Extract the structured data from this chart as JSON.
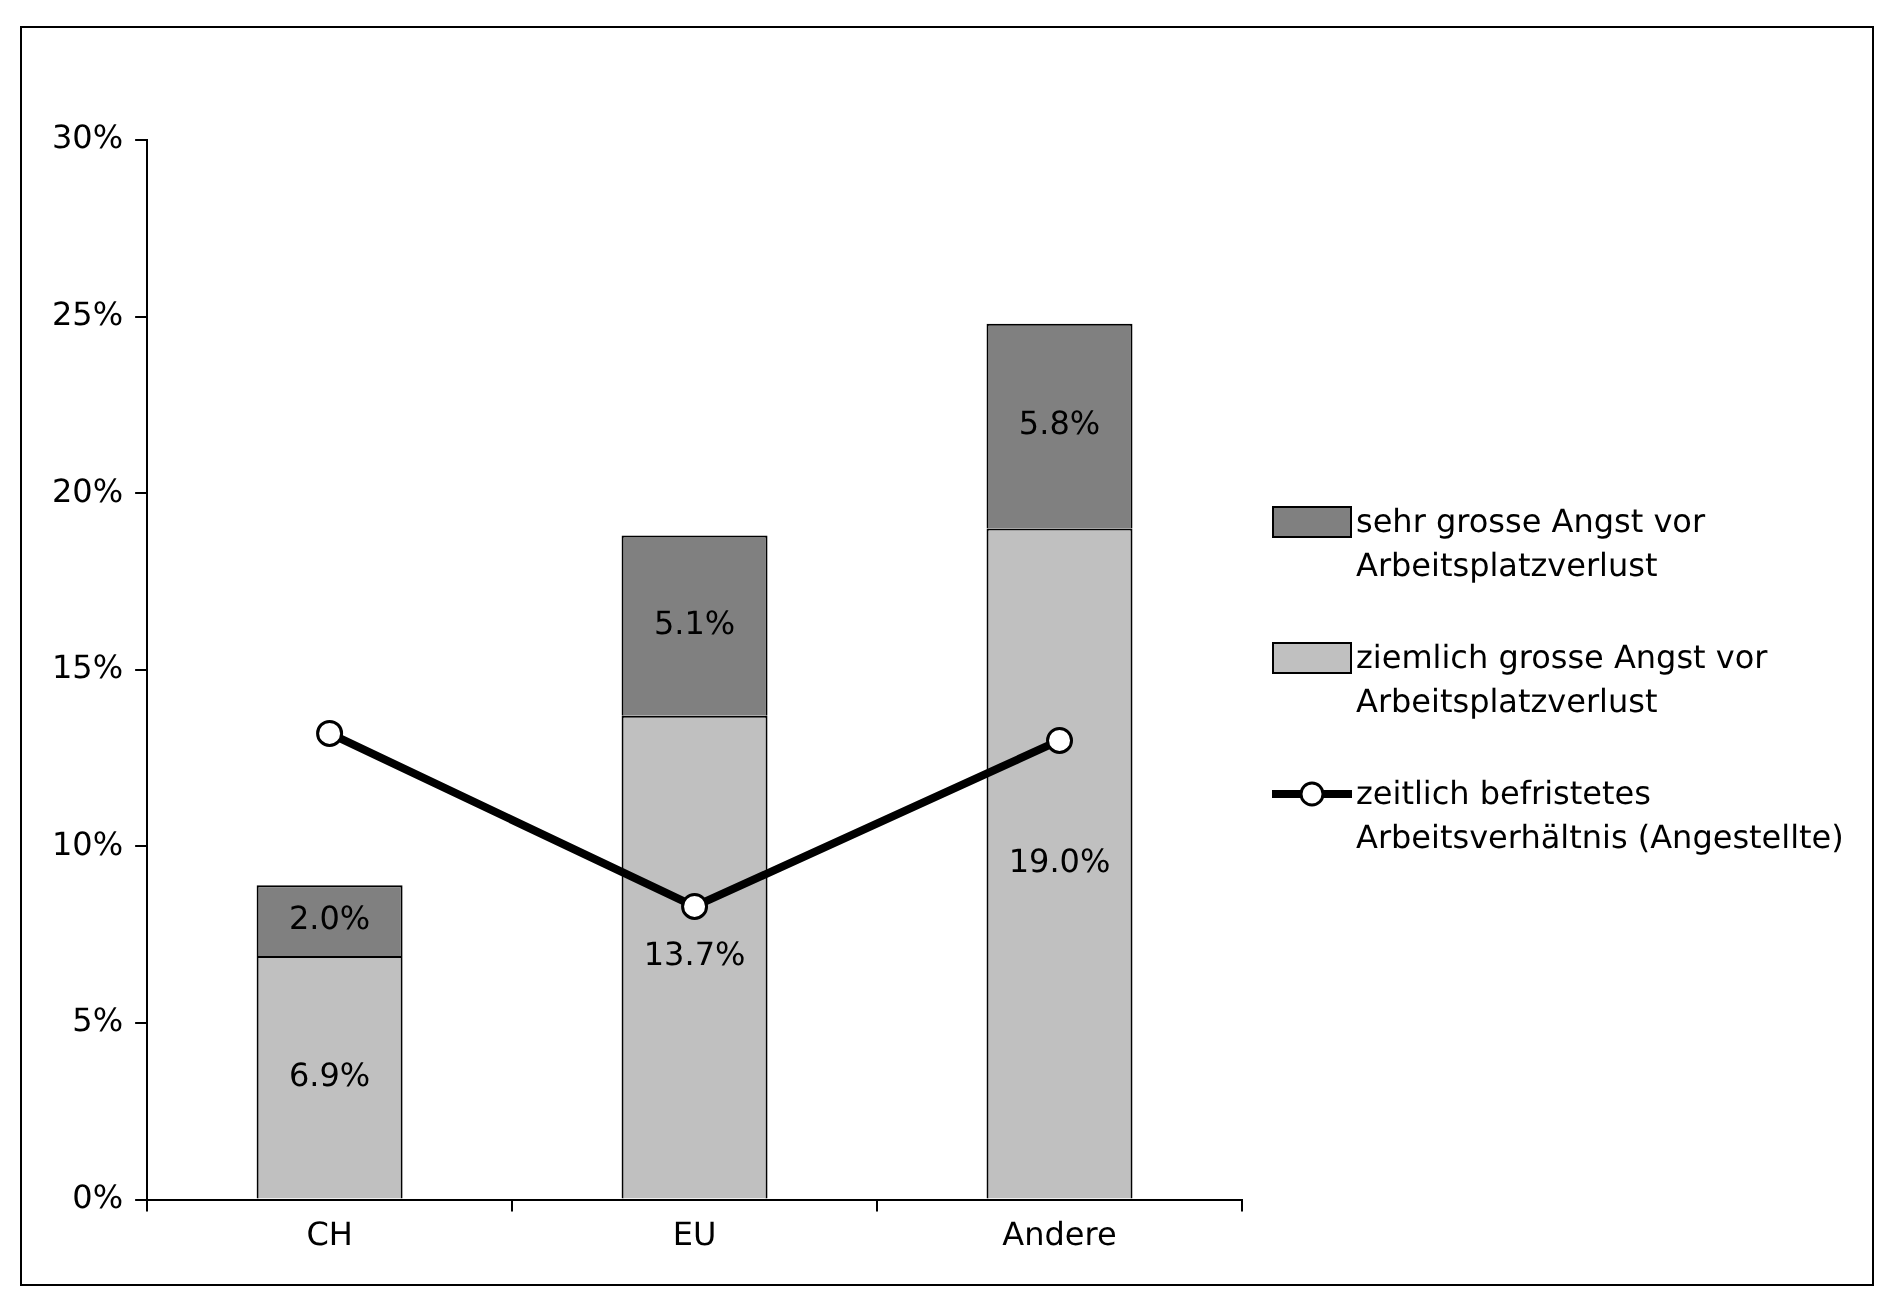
{
  "chart_data": {
    "type": "bar",
    "stacked": true,
    "categories": [
      "CH",
      "EU",
      "Andere"
    ],
    "series": [
      {
        "name": "ziemlich grosse Angst vor Arbeitsplatzverlust",
        "color": "#c0c0c0",
        "values": [
          6.9,
          13.7,
          19.0
        ],
        "value_labels": [
          "6.9%",
          "13.7%",
          "19.0%"
        ]
      },
      {
        "name": "sehr grosse Angst vor Arbeitsplatzverlust",
        "color": "#808080",
        "values": [
          2.0,
          5.1,
          5.8
        ],
        "value_labels": [
          "2.0%",
          "5.1%",
          "5.8%"
        ]
      },
      {
        "name": "zeitlich befristetes Arbeitsverhältnis (Angestellte)",
        "type": "line",
        "color": "#000000",
        "values": [
          13.2,
          8.3,
          13.0
        ],
        "marker": "circle"
      }
    ],
    "ylim": [
      0,
      30
    ],
    "yticks": [
      {
        "value": 0,
        "label": "0%"
      },
      {
        "value": 5,
        "label": "5%"
      },
      {
        "value": 10,
        "label": "10%"
      },
      {
        "value": 15,
        "label": "15%"
      },
      {
        "value": 20,
        "label": "20%"
      },
      {
        "value": 25,
        "label": "25%"
      },
      {
        "value": 30,
        "label": "30%"
      }
    ],
    "grid": false,
    "legend": "right"
  }
}
